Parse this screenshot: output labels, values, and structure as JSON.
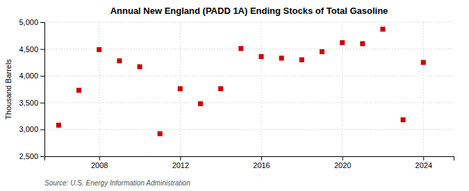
{
  "chart_data": {
    "type": "scatter",
    "title": "Annual New England (PADD 1A) Ending Stocks of Total Gasoline",
    "ylabel": "Thousand Barrels",
    "source": "Source: U.S. Energy Information Administration",
    "x": [
      2006,
      2007,
      2008,
      2009,
      2010,
      2011,
      2012,
      2013,
      2014,
      2015,
      2016,
      2017,
      2018,
      2019,
      2020,
      2021,
      2022,
      2023,
      2024
    ],
    "values": [
      3080,
      3730,
      4490,
      4280,
      4170,
      2920,
      3760,
      3480,
      3760,
      4510,
      4360,
      4330,
      4300,
      4450,
      4620,
      4600,
      4870,
      3180,
      4250
    ],
    "color": "#cc0000",
    "marker": "square",
    "xlim": [
      2005.3,
      2025.5
    ],
    "xticks": [
      2008,
      2012,
      2016,
      2020,
      2024
    ],
    "ylim": [
      2500,
      5000
    ],
    "yticks": [
      {
        "value": 2500,
        "label": "2,500"
      },
      {
        "value": 3000,
        "label": "3,000"
      },
      {
        "value": 3500,
        "label": "3,500"
      },
      {
        "value": 4000,
        "label": "4,000"
      },
      {
        "value": 4500,
        "label": "4,500"
      },
      {
        "value": 5000,
        "label": "5,000"
      }
    ],
    "grid": true
  }
}
